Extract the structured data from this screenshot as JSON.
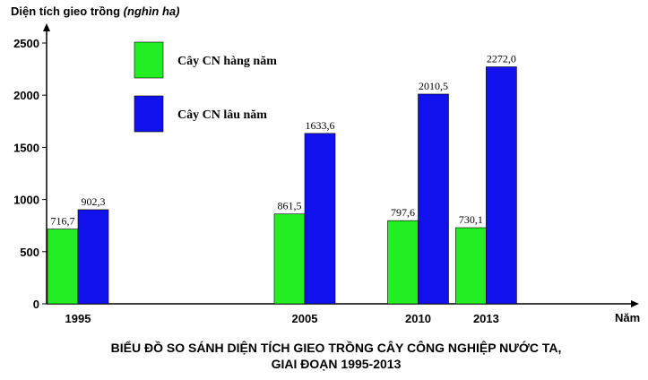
{
  "chart_data": {
    "type": "bar",
    "title": [
      "BIỂU ĐỒ SO SÁNH DIỆN TÍCH GIEO TRỒNG CÂY CÔNG NGHIỆP NƯỚC TA,",
      "GIAI ĐOẠN 1995-2013"
    ],
    "ylabel": "Diện tích gieo trồng",
    "ylabel_unit": "(nghìn ha)",
    "xlabel": "Năm",
    "categories": [
      "1995",
      "2005",
      "2010",
      "2013"
    ],
    "x": [
      1995,
      2005,
      2010,
      2013
    ],
    "series": [
      {
        "name": "Cây CN hàng năm",
        "color": "#22ee22",
        "values": [
          716.7,
          861.5,
          797.6,
          730.1
        ],
        "labels": [
          "716,7",
          "861,5",
          "797,6",
          "730,1"
        ]
      },
      {
        "name": "Cây CN lâu năm",
        "color": "#1111ee",
        "values": [
          902.3,
          1633.6,
          2010.5,
          2272.0
        ],
        "labels": [
          "902,3",
          "1633,6",
          "2010,5",
          "2272,0"
        ]
      }
    ],
    "yticks": [
      0,
      500,
      1000,
      1500,
      2000,
      2500
    ],
    "ylim": [
      0,
      2700
    ],
    "legend_position": "top-left",
    "grid": false
  }
}
